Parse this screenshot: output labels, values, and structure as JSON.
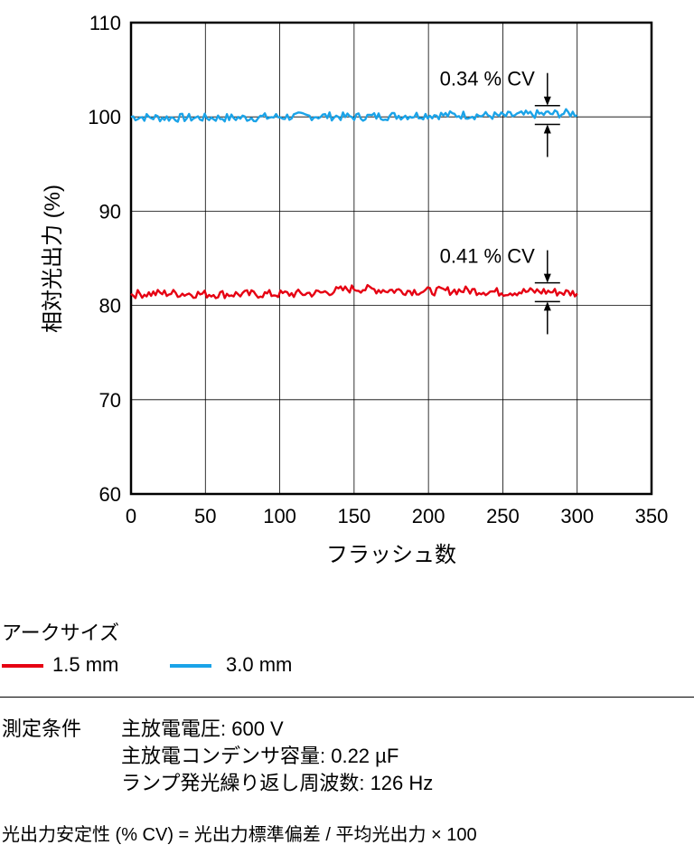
{
  "chart_data": {
    "type": "line",
    "xlabel": "フラッシュ数",
    "ylabel": "相対光出力 (%)",
    "xlim": [
      0,
      350
    ],
    "ylim": [
      60,
      110
    ],
    "xticks": [
      0,
      50,
      100,
      150,
      200,
      250,
      300,
      350
    ],
    "yticks": [
      60,
      70,
      80,
      90,
      100,
      110
    ],
    "grid": true,
    "series": [
      {
        "name": "3.0 mm",
        "color": "#1aa3e8",
        "x": [
          0,
          25,
          50,
          75,
          100,
          125,
          150,
          175,
          200,
          225,
          250,
          275,
          300
        ],
        "y": [
          100.0,
          99.9,
          99.9,
          99.9,
          100.0,
          100.1,
          100.0,
          100.1,
          100.2,
          100.2,
          100.1,
          100.3,
          100.4
        ]
      },
      {
        "name": "1.5 mm",
        "color": "#e60012",
        "x": [
          0,
          25,
          50,
          75,
          100,
          125,
          150,
          175,
          200,
          225,
          250,
          275,
          300
        ],
        "y": [
          81.2,
          81.3,
          81.2,
          81.2,
          81.2,
          81.3,
          81.8,
          81.6,
          81.5,
          81.6,
          81.4,
          81.5,
          81.3
        ]
      }
    ],
    "annotations": [
      {
        "text": "0.34 % CV",
        "x": 280,
        "y": 100.2,
        "spread": 0.34
      },
      {
        "text": "0.41 % CV",
        "x": 280,
        "y": 81.4,
        "spread": 0.41
      }
    ]
  },
  "legend": {
    "title": "アークサイズ",
    "items": [
      {
        "label": "1.5 mm",
        "color": "#e60012"
      },
      {
        "label": "3.0 mm",
        "color": "#1aa3e8"
      }
    ]
  },
  "conditions": {
    "label": "測定条件",
    "lines": [
      "主放電電圧: 600 V",
      "主放電コンデンサ容量: 0.22 µF",
      "ランプ発光繰り返し周波数: 126 Hz"
    ]
  },
  "formula": "光出力安定性 (% CV) = 光出力標準偏差 / 平均光出力 × 100"
}
